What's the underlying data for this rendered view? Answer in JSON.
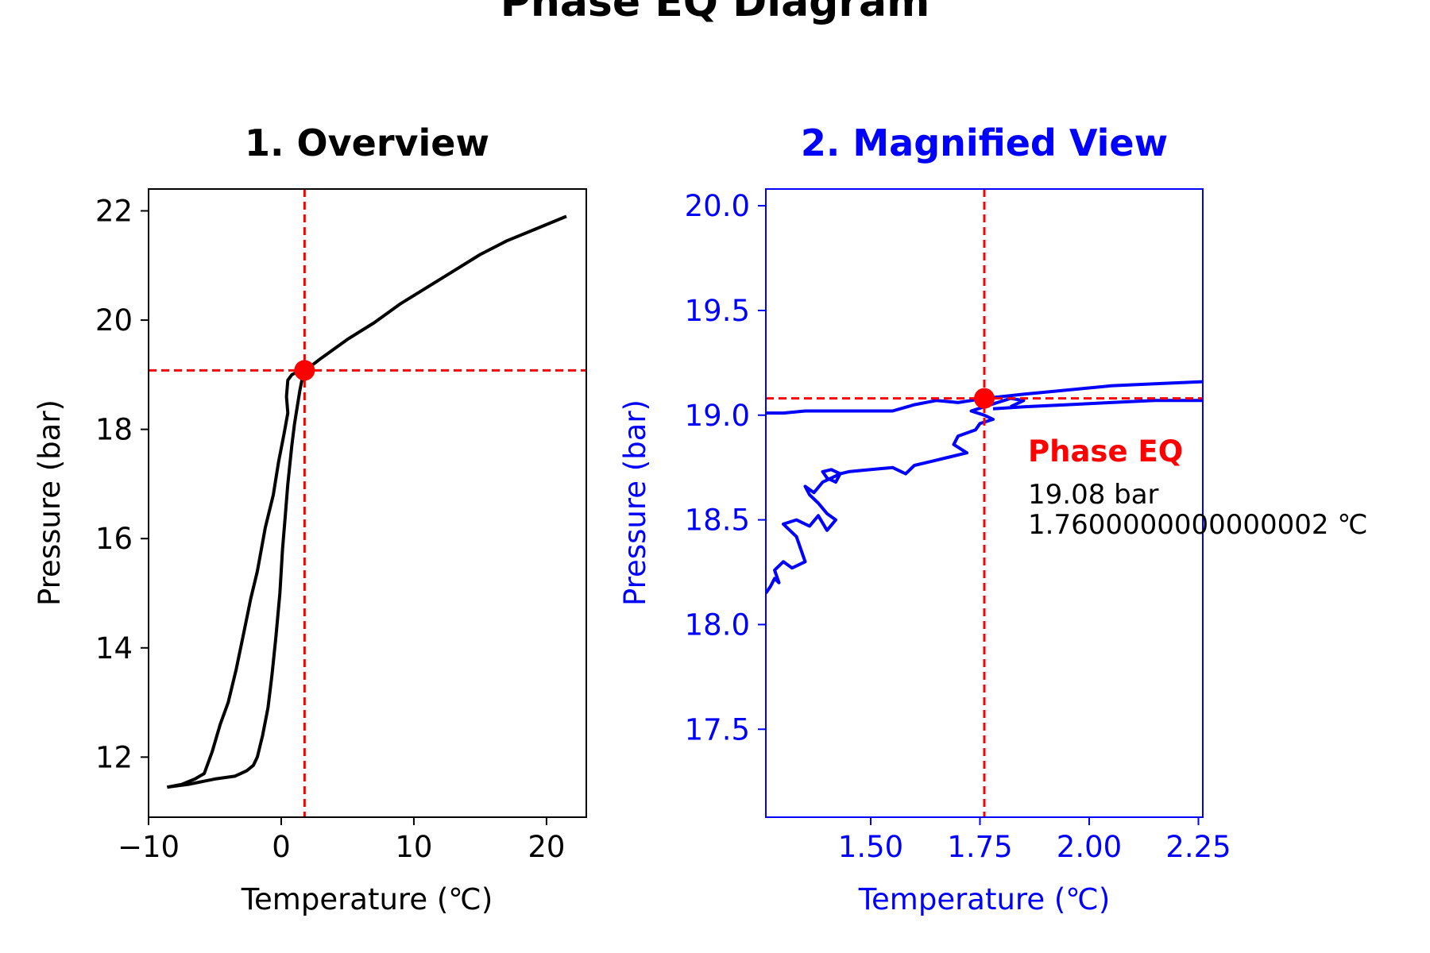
{
  "figure": {
    "title": "Phase EQ Diagram"
  },
  "colors": {
    "overview_series": "#000000",
    "magnified_series": "#0000ff",
    "eq_marker": "#ff0000",
    "magnified_axes": "#0000ff"
  },
  "chart_data": [
    {
      "type": "line",
      "title": "1. Overview",
      "xlabel": "Temperature (℃)",
      "ylabel": "Pressure (bar)",
      "xlim": [
        -10,
        23
      ],
      "ylim": [
        10.9,
        22.4
      ],
      "xticks": [
        -10,
        0,
        10,
        20
      ],
      "xtick_labels": [
        "−10",
        "0",
        "10",
        "20"
      ],
      "yticks": [
        12,
        14,
        16,
        18,
        20,
        22
      ],
      "ytick_labels": [
        "12",
        "14",
        "16",
        "18",
        "20",
        "22"
      ],
      "grid": false,
      "series": [
        {
          "x": [
            -8.6,
            -7.5,
            -6.5,
            -5.8,
            -5.2,
            -4.6,
            -4.0,
            -3.4,
            -2.8,
            -2.3,
            -1.8,
            -1.2,
            -0.6,
            -0.2,
            0.2,
            0.5,
            0.4,
            0.5,
            0.8,
            1.2,
            1.7,
            2.2,
            3.0,
            5.0,
            7.0,
            9.0,
            11.0,
            13.0,
            15.0,
            17.0,
            19.0,
            21.5
          ],
          "y": [
            11.45,
            11.5,
            11.6,
            11.7,
            12.1,
            12.6,
            13.0,
            13.6,
            14.3,
            14.9,
            15.4,
            16.2,
            16.8,
            17.4,
            17.9,
            18.3,
            18.6,
            18.9,
            19.0,
            19.05,
            19.08,
            19.15,
            19.3,
            19.65,
            19.95,
            20.3,
            20.6,
            20.9,
            21.2,
            21.45,
            21.65,
            21.9
          ]
        },
        {
          "x": [
            -8.6,
            -7.0,
            -5.0,
            -3.5,
            -2.6,
            -2.1,
            -1.8,
            -1.4,
            -1.0,
            -0.7,
            -0.4,
            -0.1,
            0.1,
            0.3,
            0.5,
            0.8,
            1.0,
            1.2,
            1.4,
            1.6,
            1.76
          ],
          "y": [
            11.45,
            11.5,
            11.6,
            11.65,
            11.75,
            11.85,
            12.0,
            12.4,
            12.9,
            13.5,
            14.2,
            15.0,
            15.8,
            16.4,
            17.0,
            17.7,
            18.1,
            18.4,
            18.7,
            18.95,
            19.08
          ]
        }
      ],
      "markers": [
        {
          "x": 1.76,
          "y": 19.08
        }
      ],
      "hline": 19.08,
      "vline": 1.76
    },
    {
      "type": "line",
      "title": "2. Magnified View",
      "xlabel": "Temperature (℃)",
      "ylabel": "Pressure (bar)",
      "xlim": [
        1.26,
        2.26
      ],
      "ylim": [
        17.08,
        20.08
      ],
      "xticks": [
        1.5,
        1.75,
        2.0,
        2.25
      ],
      "xtick_labels": [
        "1.50",
        "1.75",
        "2.00",
        "2.25"
      ],
      "yticks": [
        17.5,
        18.0,
        18.5,
        19.0,
        19.5,
        20.0
      ],
      "ytick_labels": [
        "17.5",
        "18.0",
        "18.5",
        "19.0",
        "19.5",
        "20.0"
      ],
      "grid": false,
      "series": [
        {
          "x": [
            1.26,
            1.27,
            1.28,
            1.29,
            1.28,
            1.3,
            1.32,
            1.35,
            1.33,
            1.3,
            1.33,
            1.36,
            1.38,
            1.4,
            1.42,
            1.4,
            1.38,
            1.36,
            1.35,
            1.37,
            1.39,
            1.41,
            1.43,
            1.42,
            1.4,
            1.39,
            1.41,
            1.43,
            1.45,
            1.5,
            1.55,
            1.58,
            1.6,
            1.64,
            1.68,
            1.72,
            1.69,
            1.7,
            1.74,
            1.75,
            1.78,
            1.76,
            1.73,
            1.76,
            1.79,
            1.82,
            1.85,
            1.82
          ],
          "y": [
            18.15,
            18.18,
            18.22,
            18.2,
            18.26,
            18.3,
            18.27,
            18.3,
            18.42,
            18.48,
            18.5,
            18.47,
            18.52,
            18.45,
            18.5,
            18.53,
            18.58,
            18.62,
            18.66,
            18.63,
            18.68,
            18.7,
            18.72,
            18.68,
            18.7,
            18.73,
            18.74,
            18.72,
            18.73,
            18.74,
            18.75,
            18.72,
            18.76,
            18.78,
            18.8,
            18.82,
            18.86,
            18.9,
            18.93,
            18.96,
            18.98,
            19.0,
            19.02,
            19.04,
            19.06,
            19.08,
            19.07,
            19.04
          ]
        },
        {
          "x": [
            1.26,
            1.3,
            1.35,
            1.45,
            1.55,
            1.6,
            1.65,
            1.7,
            1.76,
            1.85,
            1.95,
            2.05,
            2.15,
            2.26
          ],
          "y": [
            19.01,
            19.01,
            19.02,
            19.02,
            19.02,
            19.05,
            19.07,
            19.06,
            19.08,
            19.1,
            19.12,
            19.14,
            19.15,
            19.16
          ]
        },
        {
          "x": [
            1.78,
            1.85,
            1.95,
            2.05,
            2.15,
            2.26
          ],
          "y": [
            19.03,
            19.04,
            19.05,
            19.06,
            19.07,
            19.07
          ]
        }
      ],
      "markers": [
        {
          "x": 1.76,
          "y": 19.08
        }
      ],
      "hline": 19.08,
      "vline": 1.76,
      "annotation": {
        "title": "Phase EQ",
        "line1": "19.08 bar",
        "line2": "1.7600000000000002 ℃"
      }
    }
  ]
}
